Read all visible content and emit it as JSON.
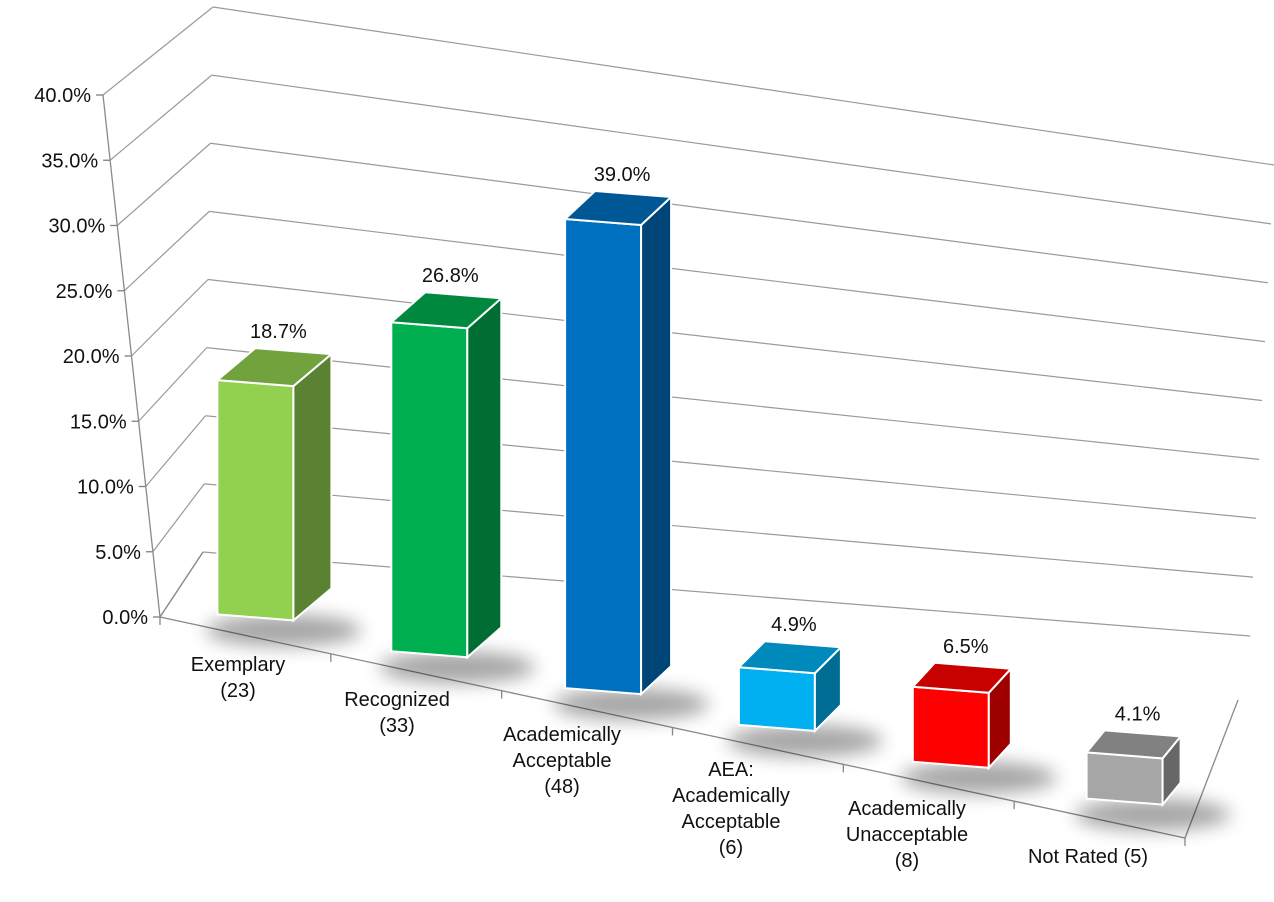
{
  "chart_data": {
    "type": "bar",
    "style": "3d-column",
    "categories": [
      [
        "Exemplary",
        "(23)"
      ],
      [
        "Recognized",
        "(33)"
      ],
      [
        "Academically",
        "Acceptable",
        "(48)"
      ],
      [
        "AEA:",
        "Academically",
        "Acceptable",
        "(6)"
      ],
      [
        "Academically",
        "Unacceptable",
        "(8)"
      ],
      [
        "Not Rated (5)"
      ]
    ],
    "values": [
      18.7,
      26.8,
      39.0,
      4.9,
      6.5,
      4.1
    ],
    "data_labels": [
      "18.7%",
      "26.8%",
      "39.0%",
      "4.9%",
      "6.5%",
      "4.1%"
    ],
    "colors": [
      "#92D050",
      "#00B050",
      "#0070C0",
      "#00B0F0",
      "#FF0000",
      "#A6A6A6"
    ],
    "ylim": [
      0,
      40
    ],
    "yticks": [
      "0.0%",
      "5.0%",
      "10.0%",
      "15.0%",
      "20.0%",
      "25.0%",
      "30.0%",
      "35.0%",
      "40.0%"
    ],
    "grid": true,
    "legend": "none",
    "title": "",
    "xlabel": "",
    "ylabel": ""
  }
}
